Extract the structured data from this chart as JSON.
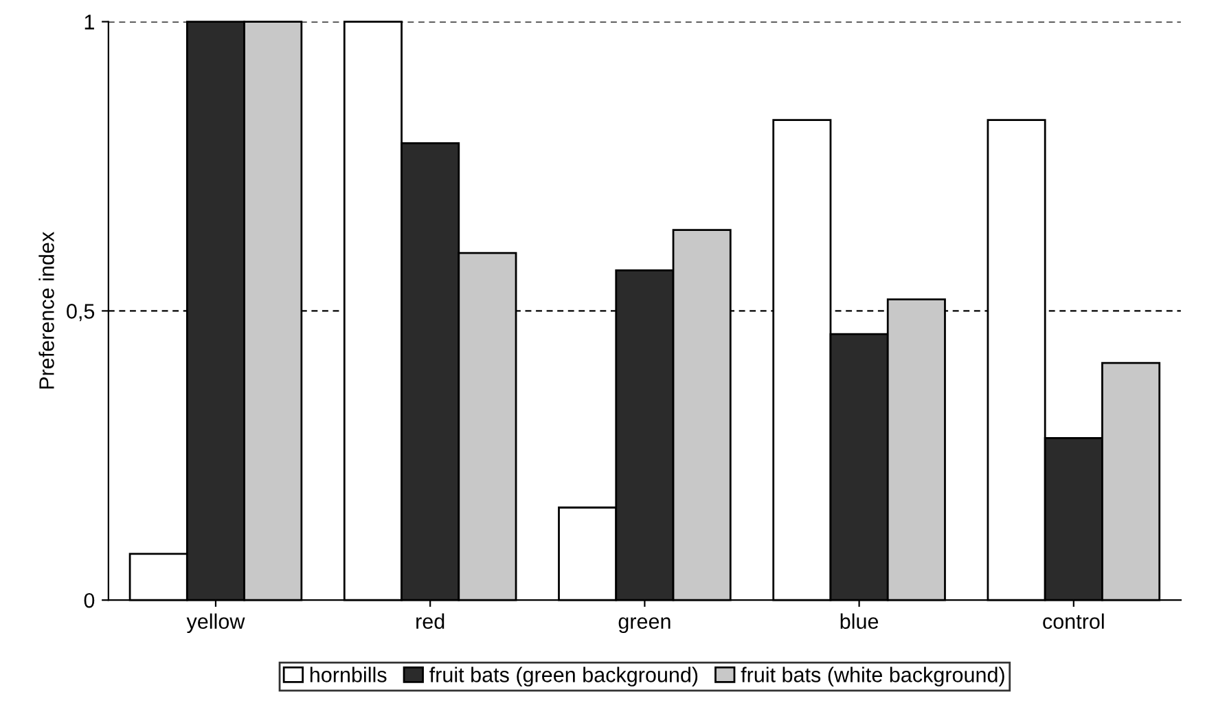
{
  "chart_data": {
    "type": "bar",
    "ylabel": "Preference index",
    "categories": [
      "yellow",
      "red",
      "green",
      "blue",
      "control"
    ],
    "series": [
      {
        "name": "hornbills",
        "color": "#ffffff",
        "values": [
          0.08,
          1,
          0.16,
          0.83,
          0.83
        ]
      },
      {
        "name": "fruit bats (green background)",
        "color": "#2b2b2b",
        "values": [
          1,
          0.79,
          0.57,
          0.46,
          0.28
        ]
      },
      {
        "name": "fruit bats (white background)",
        "color": "#c8c8c8",
        "values": [
          1,
          0.6,
          0.64,
          0.52,
          0.41
        ]
      }
    ],
    "ylim": [
      0,
      1
    ],
    "yticks": [
      0,
      {
        "value": 0.5,
        "label": "0,5"
      },
      1
    ],
    "grid": "y",
    "legend": "bottom"
  }
}
